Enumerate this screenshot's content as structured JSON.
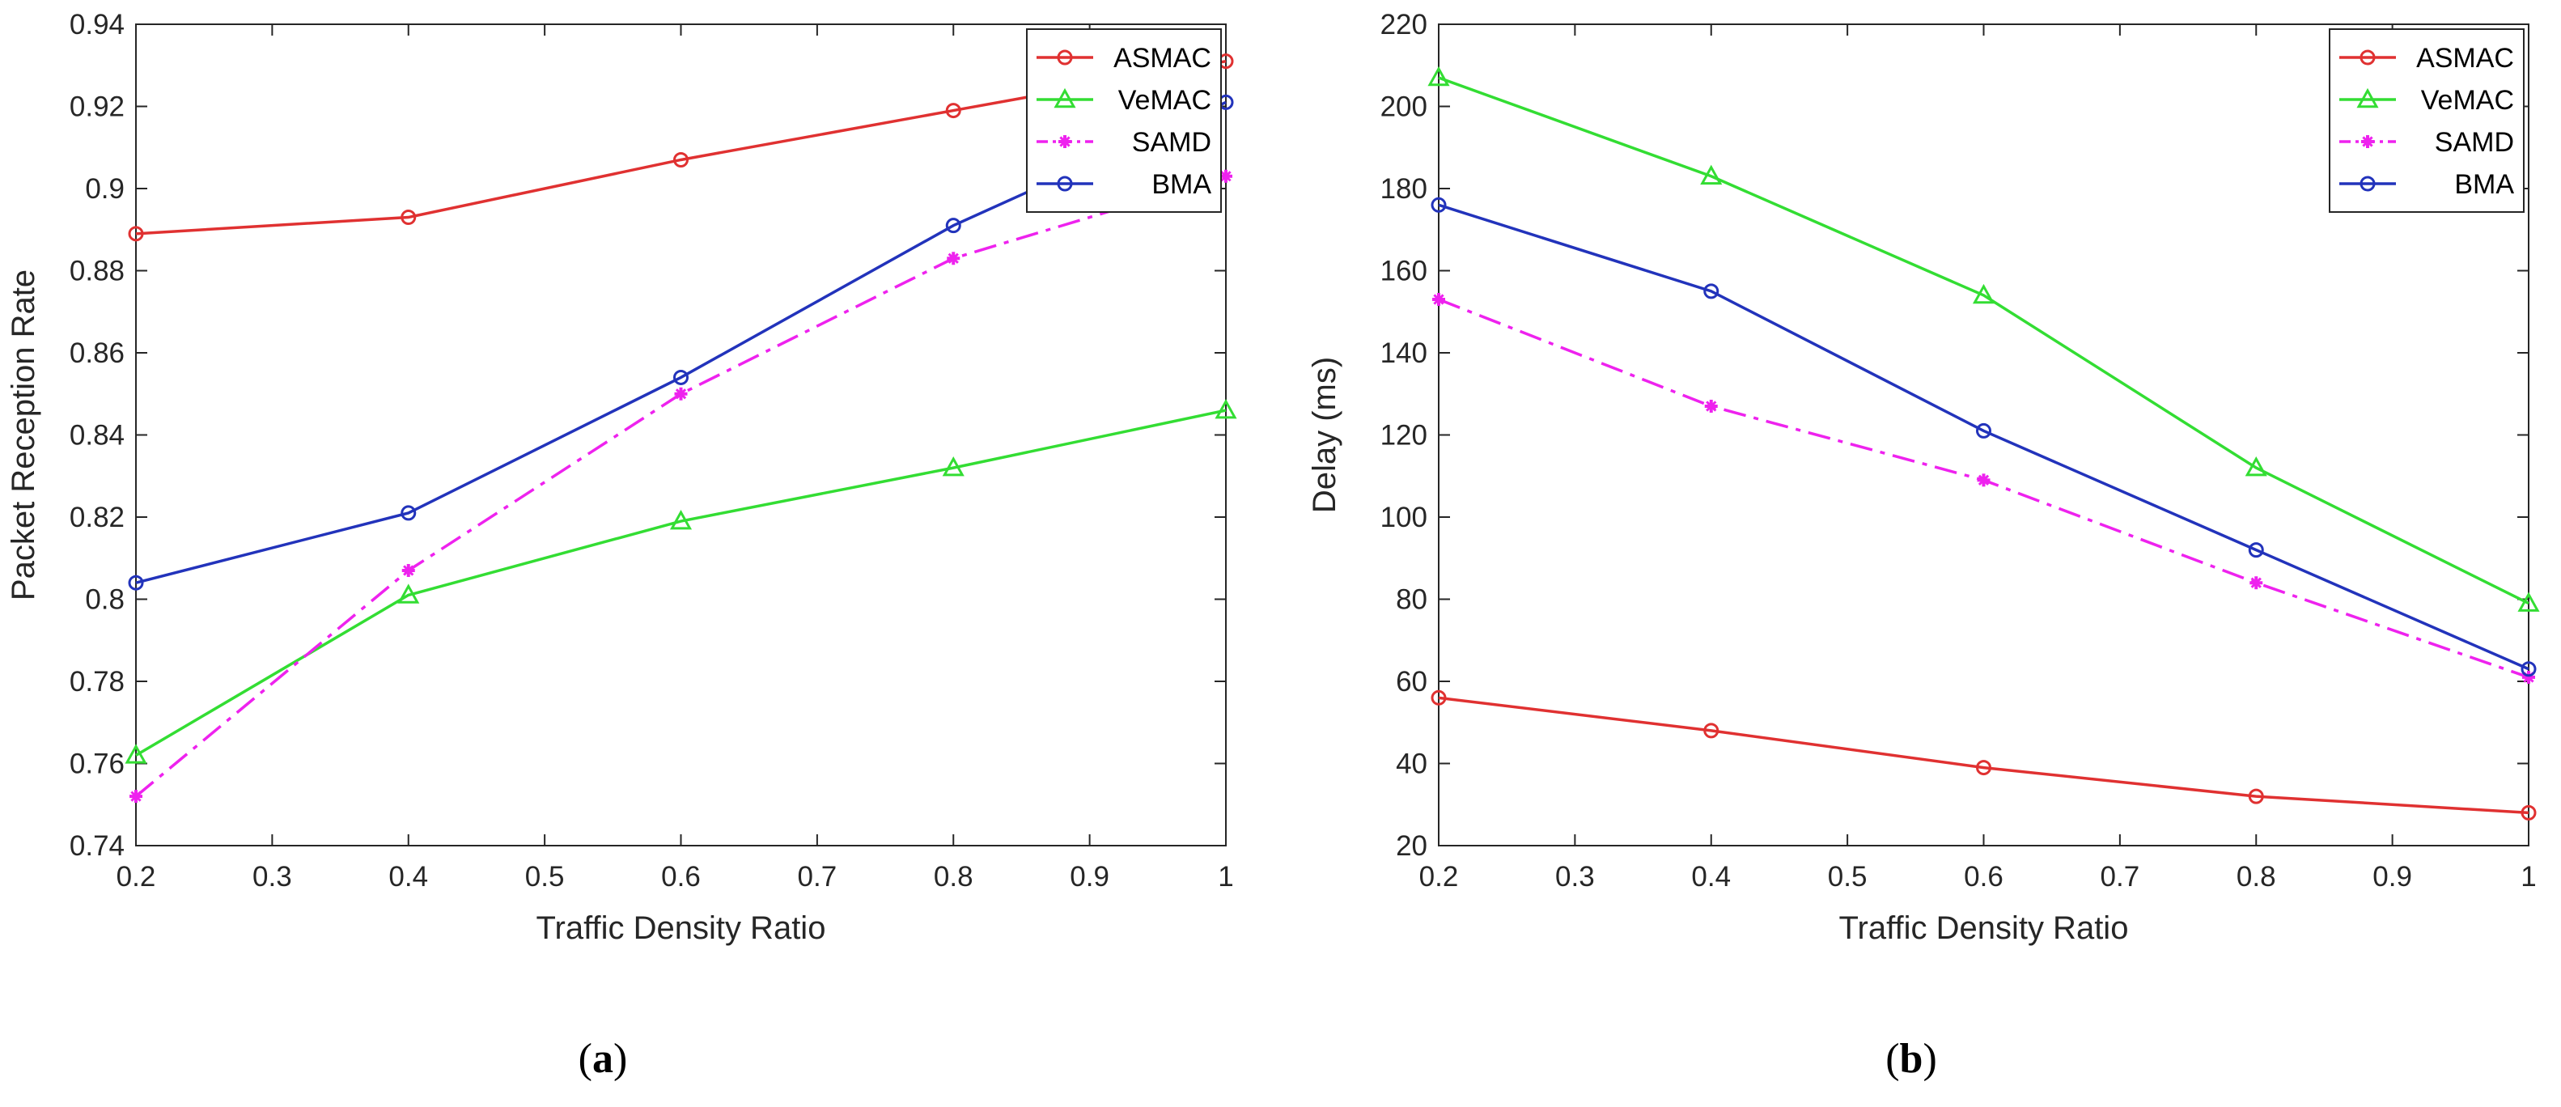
{
  "chart_data": [
    {
      "type": "line",
      "panel": "a",
      "caption": "(a)",
      "xlabel": "Traffic Density Ratio",
      "ylabel": "Packet Reception Rate",
      "xlim": [
        0.2,
        1
      ],
      "ylim": [
        0.74,
        0.94
      ],
      "xticks": [
        "0.2",
        "0.3",
        "0.4",
        "0.5",
        "0.6",
        "0.7",
        "0.8",
        "0.9",
        "1"
      ],
      "yticks": [
        "0.74",
        "0.76",
        "0.78",
        "0.8",
        "0.82",
        "0.84",
        "0.86",
        "0.88",
        "0.9",
        "0.92",
        "0.94"
      ],
      "grid": false,
      "legend_position": "top-right",
      "x": [
        0.2,
        0.4,
        0.6,
        0.8,
        1.0
      ],
      "series": [
        {
          "name": "ASMAC",
          "color": "#e03131",
          "marker": "circle",
          "dash": "solid",
          "values": [
            0.889,
            0.893,
            0.907,
            0.919,
            0.931
          ]
        },
        {
          "name": "VeMAC",
          "color": "#33dd33",
          "marker": "triangle",
          "dash": "solid",
          "values": [
            0.762,
            0.801,
            0.819,
            0.832,
            0.846
          ]
        },
        {
          "name": "SAMD",
          "color": "#ee22ee",
          "marker": "asterisk",
          "dash": "dashdot",
          "values": [
            0.752,
            0.807,
            0.85,
            0.883,
            0.903
          ]
        },
        {
          "name": "BMA",
          "color": "#2233bb",
          "marker": "circle",
          "dash": "solid",
          "values": [
            0.804,
            0.821,
            0.854,
            0.891,
            0.921
          ]
        }
      ]
    },
    {
      "type": "line",
      "panel": "b",
      "caption": "(b)",
      "xlabel": "Traffic Density Ratio",
      "ylabel": "Delay (ms)",
      "xlim": [
        0.2,
        1
      ],
      "ylim": [
        20,
        220
      ],
      "xticks": [
        "0.2",
        "0.3",
        "0.4",
        "0.5",
        "0.6",
        "0.7",
        "0.8",
        "0.9",
        "1"
      ],
      "yticks": [
        "20",
        "40",
        "60",
        "80",
        "100",
        "120",
        "140",
        "160",
        "180",
        "200",
        "220"
      ],
      "grid": false,
      "legend_position": "top-right",
      "x": [
        0.2,
        0.4,
        0.6,
        0.8,
        1.0
      ],
      "series": [
        {
          "name": "ASMAC",
          "color": "#e03131",
          "marker": "circle",
          "dash": "solid",
          "values": [
            56,
            48,
            39,
            32,
            28
          ]
        },
        {
          "name": "VeMAC",
          "color": "#33dd33",
          "marker": "triangle",
          "dash": "solid",
          "values": [
            207,
            183,
            154,
            112,
            79
          ]
        },
        {
          "name": "SAMD",
          "color": "#ee22ee",
          "marker": "asterisk",
          "dash": "dashdot",
          "values": [
            153,
            127,
            109,
            84,
            61
          ]
        },
        {
          "name": "BMA",
          "color": "#2233bb",
          "marker": "circle",
          "dash": "solid",
          "values": [
            176,
            155,
            121,
            92,
            63
          ]
        }
      ]
    }
  ]
}
